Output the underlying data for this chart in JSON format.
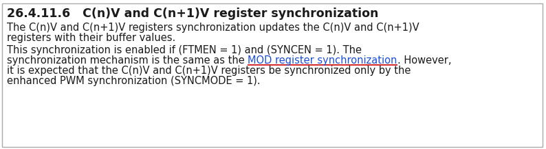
{
  "title": "26.4.11.6   C(n)V and C(n+1)V register synchronization",
  "para1_line1": "The C(n)V and C(n+1)V registers synchronization updates the C(n)V and C(n+1)V",
  "para1_line2": "registers with their buffer values.",
  "para2_line1": "This synchronization is enabled if (FTMEN = 1) and (SYNCEN = 1). The",
  "para2_line2_pre": "synchronization mechanism is the same as the ",
  "para2_line2_link": "MOD register synchronization",
  "para2_line2_post": ". However,",
  "para2_line3": "it is expected that the C(n)V and C(n+1)V registers be synchronized only by the",
  "para2_line4": "enhanced PWM synchronization (SYNCMODE = 1).",
  "bg_color": "#ffffff",
  "border_color": "#aaaaaa",
  "title_color": "#1a1a1a",
  "text_color": "#1a1a1a",
  "link_color": "#1a4fd6",
  "underline_color": "#cc0000",
  "title_fontsize": 12.5,
  "body_fontsize": 10.5
}
